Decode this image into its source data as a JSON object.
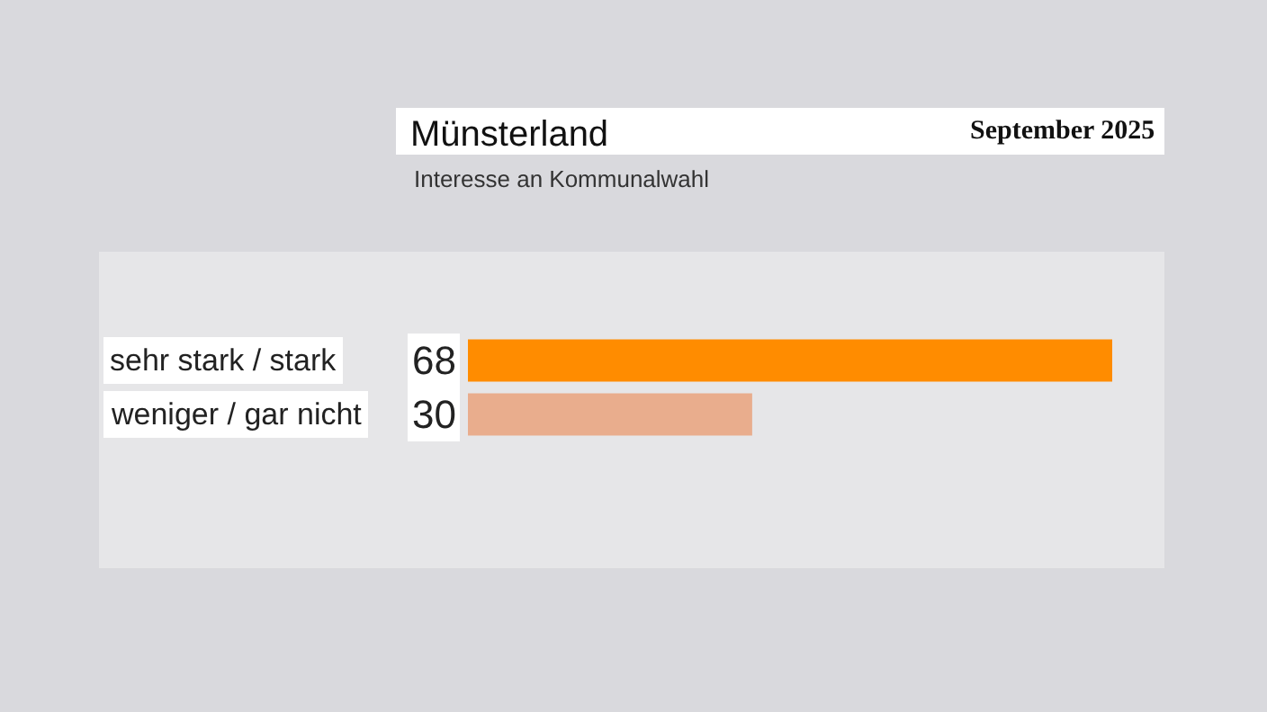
{
  "chart_data": {
    "type": "bar",
    "orientation": "horizontal",
    "title": "Münsterland",
    "subtitle": "Interesse an Kommunalwahl",
    "annotations": [
      "September 2025"
    ],
    "categories": [
      "sehr stark / stark",
      "weniger / gar nicht"
    ],
    "values": [
      68,
      30
    ],
    "colors": [
      "#ff8c00",
      "#e9ad8d"
    ],
    "data_labels": true
  }
}
